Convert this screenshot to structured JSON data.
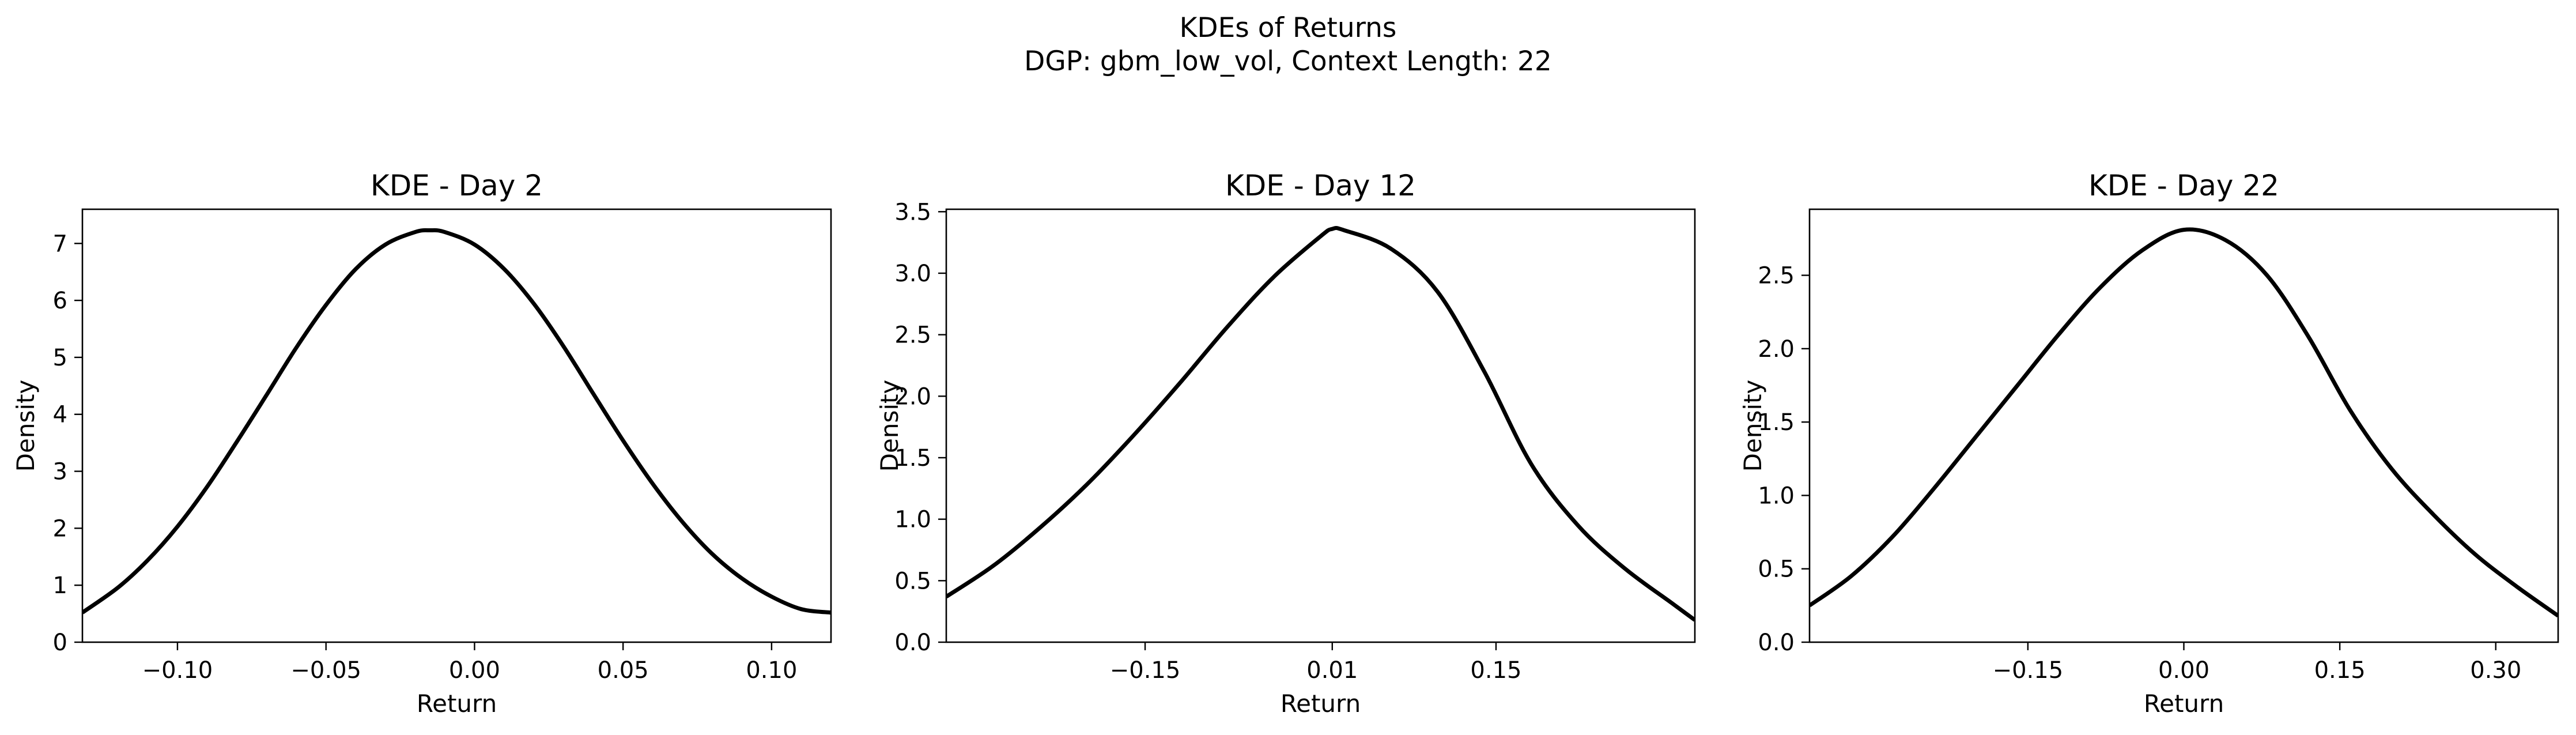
{
  "figure": {
    "title": "KDEs of Returns",
    "subtitle": "DGP: gbm_low_vol, Context Length: 22"
  },
  "chart_data": [
    {
      "type": "line",
      "title": "KDE - Day 2",
      "xlabel": "Return",
      "ylabel": "Density",
      "xlim": [
        -0.132,
        0.12
      ],
      "ylim": [
        0,
        7.6
      ],
      "xticks": [
        -0.1,
        -0.05,
        0.0,
        0.05,
        0.1
      ],
      "xtick_labels": [
        "−0.10",
        "−0.05",
        "0.00",
        "0.05",
        "0.10"
      ],
      "yticks": [
        0,
        1,
        2,
        3,
        4,
        5,
        6,
        7
      ],
      "ytick_labels": [
        "0",
        "1",
        "2",
        "3",
        "4",
        "5",
        "6",
        "7"
      ],
      "grid": false,
      "series": [
        {
          "color": "#000000",
          "x": [
            -0.132,
            -0.12,
            -0.11,
            -0.1,
            -0.09,
            -0.08,
            -0.07,
            -0.06,
            -0.05,
            -0.04,
            -0.03,
            -0.02,
            -0.015,
            -0.01,
            0.0,
            0.01,
            0.02,
            0.03,
            0.04,
            0.05,
            0.06,
            0.07,
            0.08,
            0.09,
            0.1,
            0.11,
            0.12
          ],
          "y": [
            0.52,
            0.96,
            1.44,
            2.03,
            2.73,
            3.52,
            4.34,
            5.17,
            5.92,
            6.55,
            6.98,
            7.2,
            7.23,
            7.2,
            6.98,
            6.55,
            5.94,
            5.19,
            4.36,
            3.54,
            2.78,
            2.11,
            1.55,
            1.12,
            0.8,
            0.58,
            0.52
          ]
        }
      ]
    },
    {
      "type": "line",
      "title": "KDE - Day 12",
      "xlabel": "Return",
      "ylabel": "Density",
      "xlim": [
        -0.32,
        0.32
      ],
      "ylim": [
        0,
        3.52
      ],
      "xticks": [
        -0.15,
        0.01,
        0.15
      ],
      "xtick_labels": [
        "−0.15",
        "0.01",
        "0.15"
      ],
      "yticks": [
        0.0,
        0.5,
        1.0,
        1.5,
        2.0,
        2.5,
        3.0,
        3.5
      ],
      "ytick_labels": [
        "0.0",
        "0.5",
        "1.0",
        "1.5",
        "2.0",
        "2.5",
        "3.0",
        "3.5"
      ],
      "grid": false,
      "series": [
        {
          "color": "#000000",
          "x": [
            -0.32,
            -0.28,
            -0.24,
            -0.2,
            -0.16,
            -0.12,
            -0.08,
            -0.04,
            0.0,
            0.01,
            0.02,
            0.06,
            0.1,
            0.14,
            0.18,
            0.22,
            0.26,
            0.3,
            0.32
          ],
          "y": [
            0.37,
            0.62,
            0.93,
            1.28,
            1.68,
            2.11,
            2.56,
            2.97,
            3.3,
            3.36,
            3.35,
            3.2,
            2.85,
            2.2,
            1.45,
            0.95,
            0.6,
            0.32,
            0.18
          ]
        }
      ]
    },
    {
      "type": "line",
      "title": "KDE - Day 22",
      "xlabel": "Return",
      "ylabel": "Density",
      "xlim": [
        -0.36,
        0.36
      ],
      "ylim": [
        0,
        2.95
      ],
      "xticks": [
        -0.15,
        0.0,
        0.15,
        0.3
      ],
      "xtick_labels": [
        "−0.15",
        "0.00",
        "0.15",
        "0.30"
      ],
      "yticks": [
        0.0,
        0.5,
        1.0,
        1.5,
        2.0,
        2.5
      ],
      "ytick_labels": [
        "0.0",
        "0.5",
        "1.0",
        "1.5",
        "2.0",
        "2.5"
      ],
      "grid": false,
      "series": [
        {
          "color": "#000000",
          "x": [
            -0.36,
            -0.32,
            -0.28,
            -0.24,
            -0.2,
            -0.16,
            -0.12,
            -0.08,
            -0.04,
            0.0,
            0.04,
            0.08,
            0.12,
            0.16,
            0.2,
            0.24,
            0.28,
            0.32,
            0.36
          ],
          "y": [
            0.25,
            0.45,
            0.72,
            1.05,
            1.4,
            1.75,
            2.1,
            2.42,
            2.67,
            2.81,
            2.74,
            2.5,
            2.08,
            1.58,
            1.18,
            0.87,
            0.6,
            0.38,
            0.18
          ]
        }
      ]
    }
  ]
}
